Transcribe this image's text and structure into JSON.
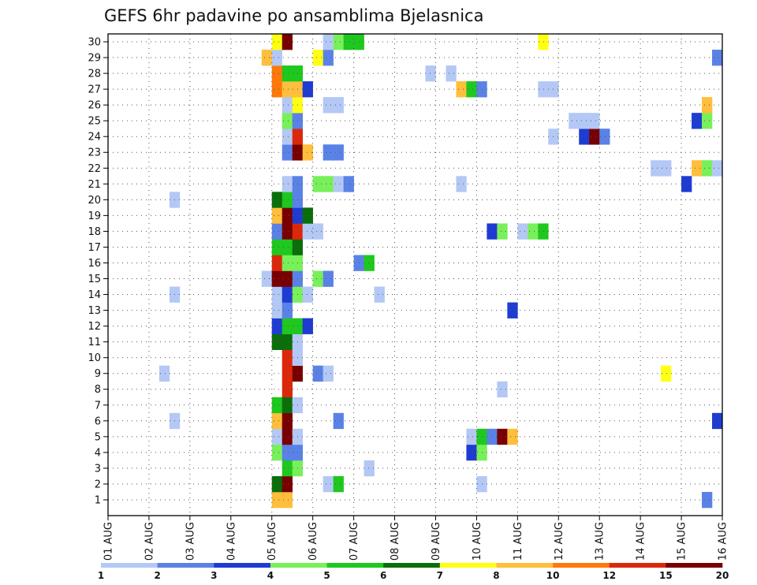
{
  "chart_data": {
    "type": "heatmap",
    "title": "GEFS 6hr padavine po ansamblima Bjelasnica",
    "xlabel": "",
    "ylabel": "",
    "x_tick_labels": [
      "01 AUG",
      "02 AUG",
      "03 AUG",
      "04 AUG",
      "05 AUG",
      "06 AUG",
      "07 AUG",
      "08 AUG",
      "09 AUG",
      "10 AUG",
      "11 AUG",
      "12 AUG",
      "13 AUG",
      "14 AUG",
      "15 AUG",
      "16 AUG"
    ],
    "y_tick_labels": [
      "1",
      "2",
      "3",
      "4",
      "5",
      "6",
      "7",
      "8",
      "9",
      "10",
      "11",
      "12",
      "13",
      "14",
      "15",
      "16",
      "17",
      "18",
      "19",
      "20",
      "21",
      "22",
      "23",
      "24",
      "25",
      "26",
      "27",
      "28",
      "29",
      "30"
    ],
    "x_range": [
      0,
      60
    ],
    "y_range": [
      0,
      30
    ],
    "grid": true,
    "time_step_hours": 6,
    "colorbar": {
      "ticks": [
        "1",
        "2",
        "3",
        "4",
        "5",
        "6",
        "7",
        "8",
        "10",
        "12",
        "15",
        "20"
      ],
      "colors": [
        "#b4c8f5",
        "#5a82e6",
        "#1e3cd2",
        "#78f05a",
        "#1ec81e",
        "#0a6e0a",
        "#ffff14",
        "#ffbe3c",
        "#ff780a",
        "#dc280a",
        "#780000"
      ]
    },
    "cells": [
      {
        "m": 0,
        "s": 16,
        "c": "#ffbe3c"
      },
      {
        "m": 0,
        "s": 17,
        "c": "#ffbe3c"
      },
      {
        "m": 0,
        "s": 58,
        "c": "#5a82e6"
      },
      {
        "m": 1,
        "s": 16,
        "c": "#0a6e0a"
      },
      {
        "m": 1,
        "s": 17,
        "c": "#780000"
      },
      {
        "m": 1,
        "s": 21,
        "c": "#b4c8f5"
      },
      {
        "m": 1,
        "s": 22,
        "c": "#1ec81e"
      },
      {
        "m": 1,
        "s": 36,
        "c": "#b4c8f5"
      },
      {
        "m": 2,
        "s": 17,
        "c": "#1ec81e"
      },
      {
        "m": 2,
        "s": 18,
        "c": "#78f05a"
      },
      {
        "m": 2,
        "s": 25,
        "c": "#b4c8f5"
      },
      {
        "m": 3,
        "s": 16,
        "c": "#78f05a"
      },
      {
        "m": 3,
        "s": 17,
        "c": "#5a82e6"
      },
      {
        "m": 3,
        "s": 18,
        "c": "#5a82e6"
      },
      {
        "m": 3,
        "s": 35,
        "c": "#1e3cd2"
      },
      {
        "m": 3,
        "s": 36,
        "c": "#78f05a"
      },
      {
        "m": 4,
        "s": 16,
        "c": "#b4c8f5"
      },
      {
        "m": 4,
        "s": 17,
        "c": "#780000"
      },
      {
        "m": 4,
        "s": 18,
        "c": "#b4c8f5"
      },
      {
        "m": 4,
        "s": 35,
        "c": "#b4c8f5"
      },
      {
        "m": 4,
        "s": 36,
        "c": "#1ec81e"
      },
      {
        "m": 4,
        "s": 37,
        "c": "#5a82e6"
      },
      {
        "m": 4,
        "s": 38,
        "c": "#780000"
      },
      {
        "m": 4,
        "s": 39,
        "c": "#ffbe3c"
      },
      {
        "m": 5,
        "s": 6,
        "c": "#b4c8f5"
      },
      {
        "m": 5,
        "s": 16,
        "c": "#ffbe3c"
      },
      {
        "m": 5,
        "s": 17,
        "c": "#780000"
      },
      {
        "m": 5,
        "s": 22,
        "c": "#5a82e6"
      },
      {
        "m": 5,
        "s": 59,
        "c": "#1e3cd2"
      },
      {
        "m": 6,
        "s": 16,
        "c": "#1ec81e"
      },
      {
        "m": 6,
        "s": 17,
        "c": "#0a6e0a"
      },
      {
        "m": 6,
        "s": 18,
        "c": "#b4c8f5"
      },
      {
        "m": 7,
        "s": 17,
        "c": "#dc280a"
      },
      {
        "m": 7,
        "s": 38,
        "c": "#b4c8f5"
      },
      {
        "m": 8,
        "s": 5,
        "c": "#b4c8f5"
      },
      {
        "m": 8,
        "s": 17,
        "c": "#dc280a"
      },
      {
        "m": 8,
        "s": 18,
        "c": "#780000"
      },
      {
        "m": 8,
        "s": 20,
        "c": "#5a82e6"
      },
      {
        "m": 8,
        "s": 21,
        "c": "#b4c8f5"
      },
      {
        "m": 8,
        "s": 54,
        "c": "#ffff14"
      },
      {
        "m": 9,
        "s": 17,
        "c": "#dc280a"
      },
      {
        "m": 9,
        "s": 18,
        "c": "#b4c8f5"
      },
      {
        "m": 10,
        "s": 16,
        "c": "#0a6e0a"
      },
      {
        "m": 10,
        "s": 17,
        "c": "#0a6e0a"
      },
      {
        "m": 10,
        "s": 18,
        "c": "#b4c8f5"
      },
      {
        "m": 11,
        "s": 16,
        "c": "#1e3cd2"
      },
      {
        "m": 11,
        "s": 17,
        "c": "#1ec81e"
      },
      {
        "m": 11,
        "s": 18,
        "c": "#1ec81e"
      },
      {
        "m": 11,
        "s": 19,
        "c": "#1e3cd2"
      },
      {
        "m": 12,
        "s": 16,
        "c": "#b4c8f5"
      },
      {
        "m": 12,
        "s": 17,
        "c": "#5a82e6"
      },
      {
        "m": 12,
        "s": 39,
        "c": "#1e3cd2"
      },
      {
        "m": 13,
        "s": 6,
        "c": "#b4c8f5"
      },
      {
        "m": 13,
        "s": 16,
        "c": "#b4c8f5"
      },
      {
        "m": 13,
        "s": 17,
        "c": "#1e3cd2"
      },
      {
        "m": 13,
        "s": 18,
        "c": "#78f05a"
      },
      {
        "m": 13,
        "s": 19,
        "c": "#b4c8f5"
      },
      {
        "m": 13,
        "s": 26,
        "c": "#b4c8f5"
      },
      {
        "m": 14,
        "s": 15,
        "c": "#b4c8f5"
      },
      {
        "m": 14,
        "s": 16,
        "c": "#780000"
      },
      {
        "m": 14,
        "s": 17,
        "c": "#780000"
      },
      {
        "m": 14,
        "s": 18,
        "c": "#5a82e6"
      },
      {
        "m": 14,
        "s": 20,
        "c": "#78f05a"
      },
      {
        "m": 14,
        "s": 21,
        "c": "#5a82e6"
      },
      {
        "m": 15,
        "s": 16,
        "c": "#dc280a"
      },
      {
        "m": 15,
        "s": 17,
        "c": "#78f05a"
      },
      {
        "m": 15,
        "s": 18,
        "c": "#78f05a"
      },
      {
        "m": 15,
        "s": 24,
        "c": "#5a82e6"
      },
      {
        "m": 15,
        "s": 25,
        "c": "#1ec81e"
      },
      {
        "m": 16,
        "s": 16,
        "c": "#1ec81e"
      },
      {
        "m": 16,
        "s": 17,
        "c": "#1ec81e"
      },
      {
        "m": 16,
        "s": 18,
        "c": "#0a6e0a"
      },
      {
        "m": 17,
        "s": 16,
        "c": "#5a82e6"
      },
      {
        "m": 17,
        "s": 17,
        "c": "#780000"
      },
      {
        "m": 17,
        "s": 18,
        "c": "#dc280a"
      },
      {
        "m": 17,
        "s": 19,
        "c": "#b4c8f5"
      },
      {
        "m": 17,
        "s": 20,
        "c": "#b4c8f5"
      },
      {
        "m": 17,
        "s": 37,
        "c": "#1e3cd2"
      },
      {
        "m": 17,
        "s": 38,
        "c": "#78f05a"
      },
      {
        "m": 17,
        "s": 40,
        "c": "#b4c8f5"
      },
      {
        "m": 17,
        "s": 41,
        "c": "#78f05a"
      },
      {
        "m": 17,
        "s": 42,
        "c": "#1ec81e"
      },
      {
        "m": 18,
        "s": 16,
        "c": "#ffbe3c"
      },
      {
        "m": 18,
        "s": 17,
        "c": "#780000"
      },
      {
        "m": 18,
        "s": 18,
        "c": "#1e3cd2"
      },
      {
        "m": 18,
        "s": 19,
        "c": "#0a6e0a"
      },
      {
        "m": 19,
        "s": 6,
        "c": "#b4c8f5"
      },
      {
        "m": 19,
        "s": 16,
        "c": "#0a6e0a"
      },
      {
        "m": 19,
        "s": 17,
        "c": "#1ec81e"
      },
      {
        "m": 19,
        "s": 18,
        "c": "#5a82e6"
      },
      {
        "m": 20,
        "s": 17,
        "c": "#b4c8f5"
      },
      {
        "m": 20,
        "s": 18,
        "c": "#5a82e6"
      },
      {
        "m": 20,
        "s": 20,
        "c": "#78f05a"
      },
      {
        "m": 20,
        "s": 21,
        "c": "#78f05a"
      },
      {
        "m": 20,
        "s": 22,
        "c": "#b4c8f5"
      },
      {
        "m": 20,
        "s": 23,
        "c": "#5a82e6"
      },
      {
        "m": 20,
        "s": 34,
        "c": "#b4c8f5"
      },
      {
        "m": 20,
        "s": 56,
        "c": "#1e3cd2"
      },
      {
        "m": 21,
        "s": 53,
        "c": "#b4c8f5"
      },
      {
        "m": 21,
        "s": 54,
        "c": "#b4c8f5"
      },
      {
        "m": 21,
        "s": 57,
        "c": "#ffbe3c"
      },
      {
        "m": 21,
        "s": 58,
        "c": "#78f05a"
      },
      {
        "m": 21,
        "s": 59,
        "c": "#b4c8f5"
      },
      {
        "m": 22,
        "s": 17,
        "c": "#5a82e6"
      },
      {
        "m": 22,
        "s": 18,
        "c": "#780000"
      },
      {
        "m": 22,
        "s": 19,
        "c": "#ffbe3c"
      },
      {
        "m": 22,
        "s": 21,
        "c": "#5a82e6"
      },
      {
        "m": 22,
        "s": 22,
        "c": "#5a82e6"
      },
      {
        "m": 23,
        "s": 17,
        "c": "#b4c8f5"
      },
      {
        "m": 23,
        "s": 18,
        "c": "#dc280a"
      },
      {
        "m": 23,
        "s": 43,
        "c": "#b4c8f5"
      },
      {
        "m": 23,
        "s": 46,
        "c": "#1e3cd2"
      },
      {
        "m": 23,
        "s": 47,
        "c": "#780000"
      },
      {
        "m": 23,
        "s": 48,
        "c": "#5a82e6"
      },
      {
        "m": 24,
        "s": 17,
        "c": "#78f05a"
      },
      {
        "m": 24,
        "s": 18,
        "c": "#5a82e6"
      },
      {
        "m": 24,
        "s": 45,
        "c": "#b4c8f5"
      },
      {
        "m": 24,
        "s": 46,
        "c": "#b4c8f5"
      },
      {
        "m": 24,
        "s": 47,
        "c": "#b4c8f5"
      },
      {
        "m": 24,
        "s": 57,
        "c": "#1e3cd2"
      },
      {
        "m": 24,
        "s": 58,
        "c": "#78f05a"
      },
      {
        "m": 25,
        "s": 17,
        "c": "#b4c8f5"
      },
      {
        "m": 25,
        "s": 18,
        "c": "#ffff14"
      },
      {
        "m": 25,
        "s": 21,
        "c": "#b4c8f5"
      },
      {
        "m": 25,
        "s": 22,
        "c": "#b4c8f5"
      },
      {
        "m": 25,
        "s": 58,
        "c": "#ffbe3c"
      },
      {
        "m": 26,
        "s": 16,
        "c": "#ff780a"
      },
      {
        "m": 26,
        "s": 17,
        "c": "#ffbe3c"
      },
      {
        "m": 26,
        "s": 18,
        "c": "#ffbe3c"
      },
      {
        "m": 26,
        "s": 19,
        "c": "#1e3cd2"
      },
      {
        "m": 26,
        "s": 34,
        "c": "#ffbe3c"
      },
      {
        "m": 26,
        "s": 35,
        "c": "#1ec81e"
      },
      {
        "m": 26,
        "s": 36,
        "c": "#5a82e6"
      },
      {
        "m": 26,
        "s": 42,
        "c": "#b4c8f5"
      },
      {
        "m": 26,
        "s": 43,
        "c": "#b4c8f5"
      },
      {
        "m": 27,
        "s": 16,
        "c": "#ff780a"
      },
      {
        "m": 27,
        "s": 17,
        "c": "#1ec81e"
      },
      {
        "m": 27,
        "s": 18,
        "c": "#1ec81e"
      },
      {
        "m": 27,
        "s": 31,
        "c": "#b4c8f5"
      },
      {
        "m": 27,
        "s": 33,
        "c": "#b4c8f5"
      },
      {
        "m": 28,
        "s": 15,
        "c": "#ffbe3c"
      },
      {
        "m": 28,
        "s": 16,
        "c": "#b4c8f5"
      },
      {
        "m": 28,
        "s": 20,
        "c": "#ffff14"
      },
      {
        "m": 28,
        "s": 21,
        "c": "#5a82e6"
      },
      {
        "m": 28,
        "s": 59,
        "c": "#5a82e6"
      },
      {
        "m": 29,
        "s": 16,
        "c": "#ffff14"
      },
      {
        "m": 29,
        "s": 17,
        "c": "#780000"
      },
      {
        "m": 29,
        "s": 21,
        "c": "#b4c8f5"
      },
      {
        "m": 29,
        "s": 22,
        "c": "#78f05a"
      },
      {
        "m": 29,
        "s": 23,
        "c": "#1ec81e"
      },
      {
        "m": 29,
        "s": 24,
        "c": "#1ec81e"
      },
      {
        "m": 29,
        "s": 42,
        "c": "#ffff14"
      }
    ]
  }
}
